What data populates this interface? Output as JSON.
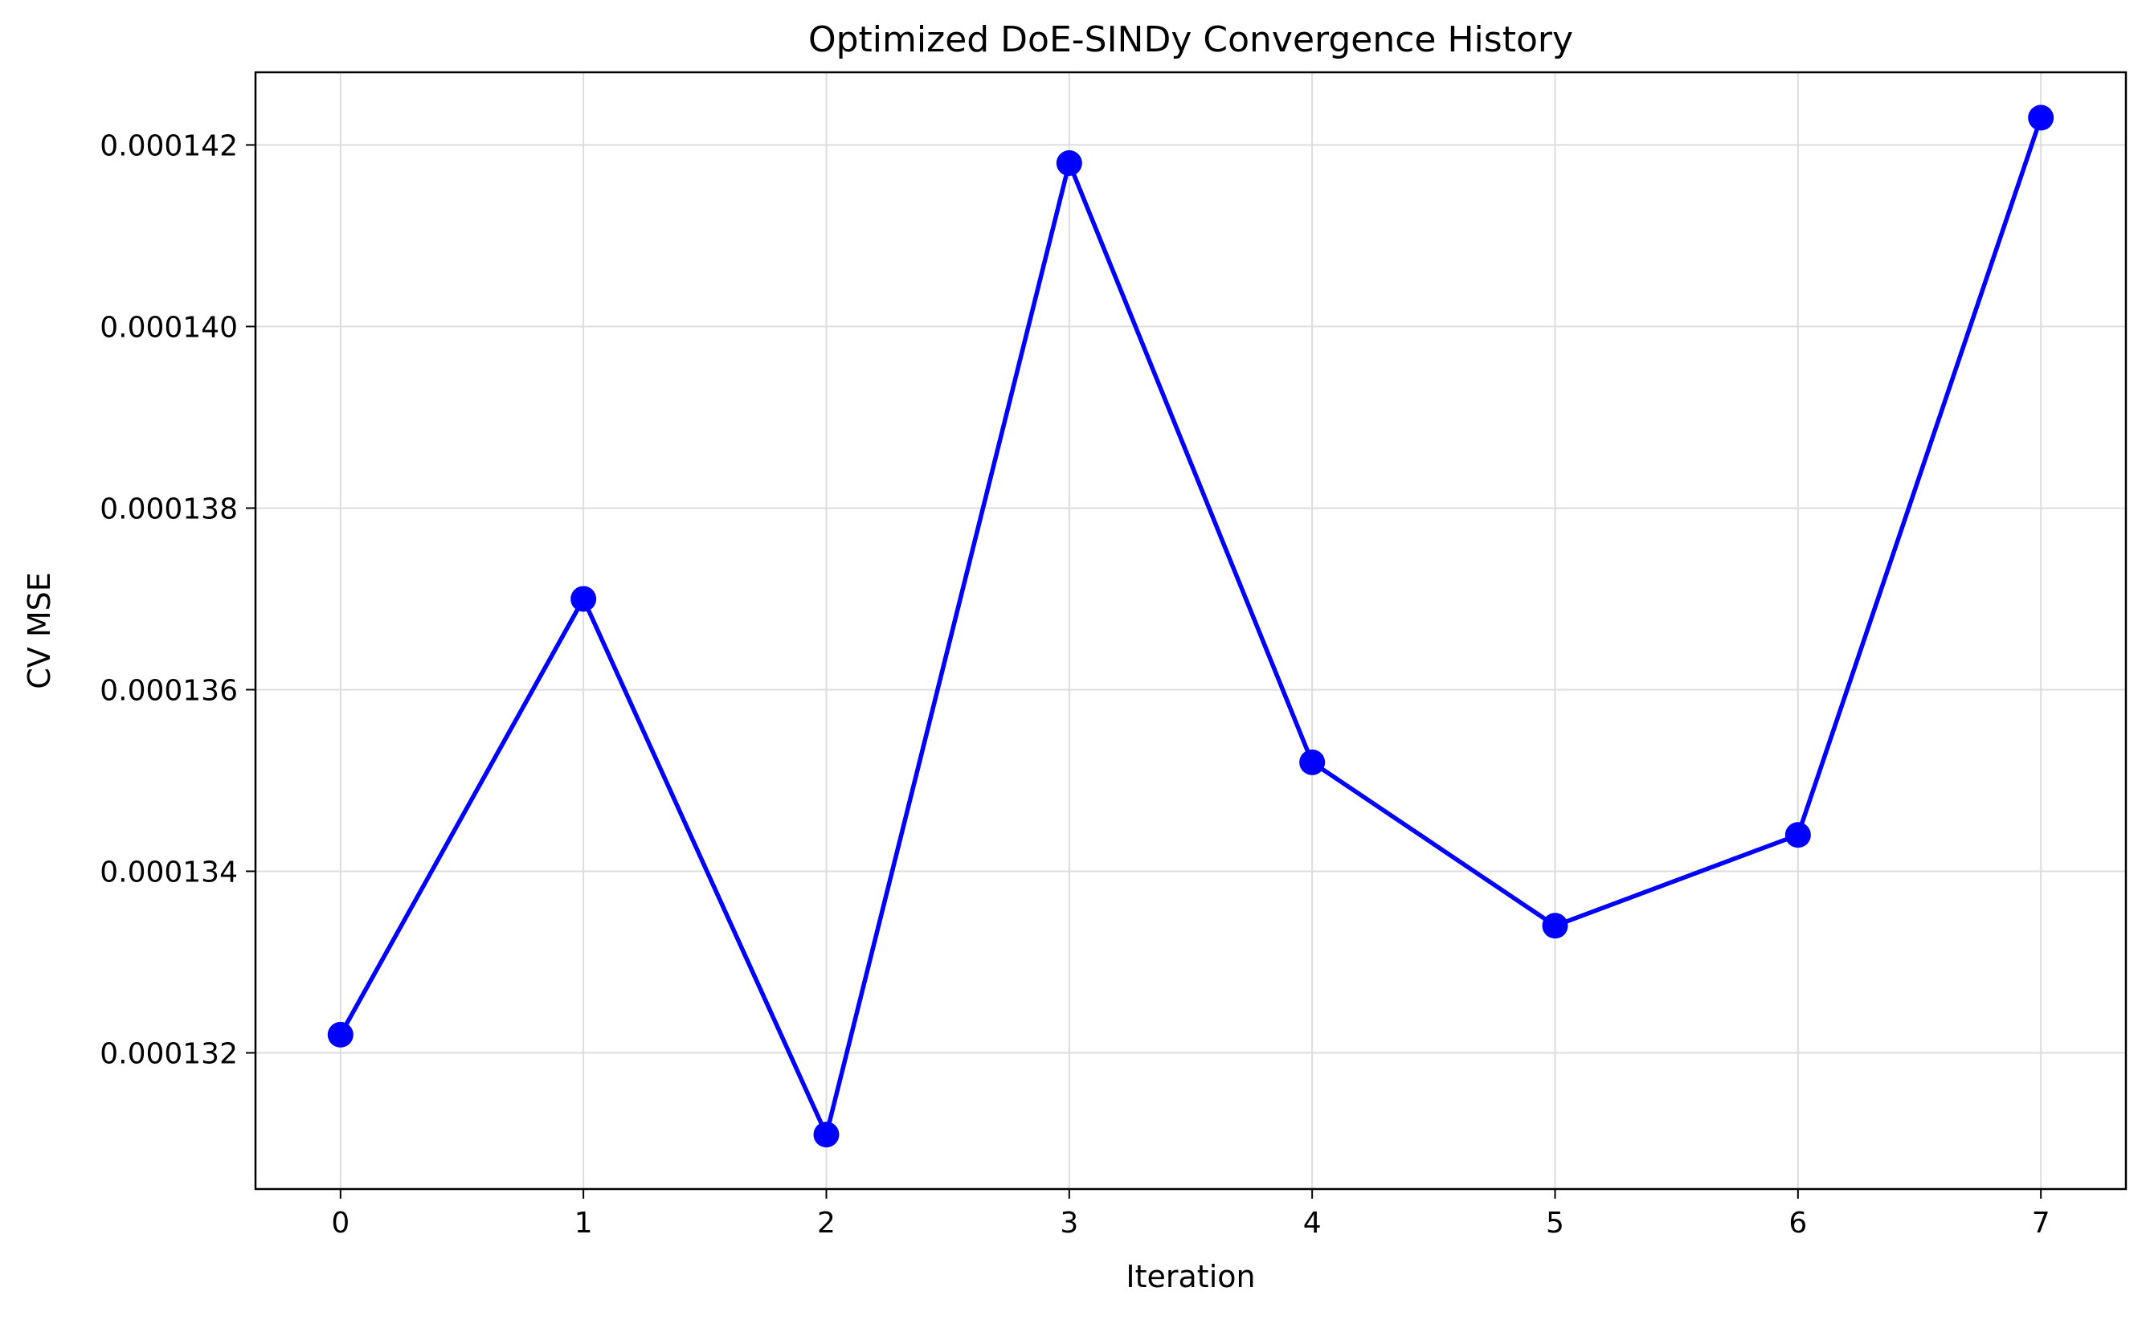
{
  "chart_data": {
    "type": "line",
    "title": "Optimized DoE-SINDy Convergence History",
    "xlabel": "Iteration",
    "ylabel": "CV MSE",
    "x": [
      0,
      1,
      2,
      3,
      4,
      5,
      6,
      7
    ],
    "series": [
      {
        "values": [
          0.0001322,
          0.000137,
          0.0001311,
          0.0001418,
          0.0001352,
          0.0001334,
          0.0001344,
          0.0001423
        ],
        "color": "#0000ff",
        "marker": "circle"
      }
    ],
    "xlim": [
      -0.35,
      7.35
    ],
    "ylim": [
      0.0001305,
      0.0001428
    ],
    "xticks": [
      0,
      1,
      2,
      3,
      4,
      5,
      6,
      7
    ],
    "yticks": [
      0.000132,
      0.000134,
      0.000136,
      0.000138,
      0.00014,
      0.000142
    ],
    "ytick_labels": [
      "0.000132",
      "0.000134",
      "0.000136",
      "0.000138",
      "0.000140",
      "0.000142"
    ],
    "grid": true,
    "grid_color": "#dddddd"
  }
}
